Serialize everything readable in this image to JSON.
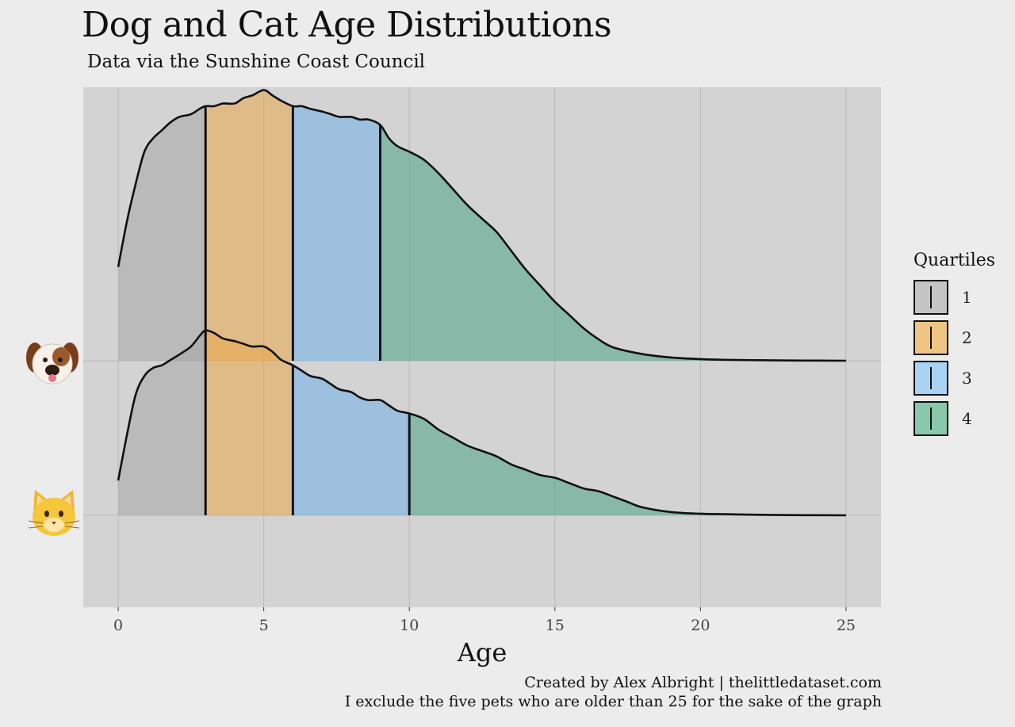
{
  "header": {
    "title": "Dog and Cat Age Distributions",
    "subtitle": "Data via the Sunshine Coast Council"
  },
  "footer": {
    "caption_line1": "Created by Alex Albright  |  thelittledataset.com",
    "caption_line2": "I exclude the five pets who are older than 25 for the sake of the graph"
  },
  "colors": {
    "background": "#ececec",
    "panel": "#d3d3d3",
    "grid": "#b9b9b9",
    "quartile_1": "#a6a6a6",
    "quartile_2": "#e8a848",
    "quartile_3": "#6fb0e6",
    "quartile_4": "#4aa383",
    "quartile_1_legend": "#c4c4c4",
    "quartile_2_legend": "#efc584",
    "quartile_3_legend": "#a9d2f3",
    "quartile_4_legend": "#8ac8ab",
    "outline": "#111111"
  },
  "legend": {
    "title": "Quartiles",
    "items": [
      {
        "label": "1",
        "color_key": "quartile_1_legend"
      },
      {
        "label": "2",
        "color_key": "quartile_2_legend"
      },
      {
        "label": "3",
        "color_key": "quartile_3_legend"
      },
      {
        "label": "4",
        "color_key": "quartile_4_legend"
      }
    ]
  },
  "chart_data": {
    "type": "area",
    "chart_subtype": "ridgeline-density",
    "title": "Dog and Cat Age Distributions",
    "subtitle": "Data via the Sunshine Coast Council",
    "xlabel": "Age",
    "ylabel": "",
    "xlim": [
      -1.2,
      26.2
    ],
    "x_ticks": [
      0,
      5,
      10,
      15,
      20,
      25
    ],
    "grid": true,
    "legend_position": "right",
    "legend_title": "Quartiles",
    "legend_entries": [
      "1",
      "2",
      "3",
      "4"
    ],
    "quartile_fill_opacity": 0.55,
    "series": [
      {
        "icon": "dog-face-icon",
        "quartile_breaks": [
          3,
          6,
          9
        ],
        "density": [
          [
            0,
            0.35
          ],
          [
            0.3,
            0.52
          ],
          [
            0.6,
            0.66
          ],
          [
            0.9,
            0.78
          ],
          [
            1.2,
            0.83
          ],
          [
            1.5,
            0.86
          ],
          [
            1.8,
            0.89
          ],
          [
            2.1,
            0.91
          ],
          [
            2.5,
            0.92
          ],
          [
            2.8,
            0.94
          ],
          [
            3.0,
            0.95
          ],
          [
            3.3,
            0.95
          ],
          [
            3.6,
            0.96
          ],
          [
            4.0,
            0.96
          ],
          [
            4.3,
            0.98
          ],
          [
            4.6,
            0.99
          ],
          [
            5.0,
            1.01
          ],
          [
            5.3,
            0.99
          ],
          [
            5.6,
            0.97
          ],
          [
            6.0,
            0.95
          ],
          [
            6.3,
            0.95
          ],
          [
            6.6,
            0.94
          ],
          [
            7.0,
            0.93
          ],
          [
            7.3,
            0.92
          ],
          [
            7.6,
            0.91
          ],
          [
            8.0,
            0.91
          ],
          [
            8.3,
            0.9
          ],
          [
            8.6,
            0.9
          ],
          [
            9.0,
            0.88
          ],
          [
            9.3,
            0.83
          ],
          [
            9.6,
            0.8
          ],
          [
            10.0,
            0.78
          ],
          [
            10.5,
            0.75
          ],
          [
            11.0,
            0.7
          ],
          [
            11.5,
            0.64
          ],
          [
            12.0,
            0.58
          ],
          [
            12.5,
            0.53
          ],
          [
            13.0,
            0.48
          ],
          [
            13.5,
            0.41
          ],
          [
            14.0,
            0.34
          ],
          [
            14.5,
            0.28
          ],
          [
            15.0,
            0.22
          ],
          [
            15.5,
            0.17
          ],
          [
            16.0,
            0.12
          ],
          [
            16.5,
            0.08
          ],
          [
            17.0,
            0.05
          ],
          [
            18.0,
            0.025
          ],
          [
            19.0,
            0.012
          ],
          [
            20.0,
            0.006
          ],
          [
            21.0,
            0.003
          ],
          [
            22.0,
            0.002
          ],
          [
            23.0,
            0.001
          ],
          [
            25.0,
            0.0
          ]
        ]
      },
      {
        "icon": "cat-face-icon",
        "quartile_breaks": [
          3,
          6,
          10
        ],
        "density": [
          [
            0,
            0.13
          ],
          [
            0.3,
            0.3
          ],
          [
            0.6,
            0.45
          ],
          [
            0.9,
            0.52
          ],
          [
            1.2,
            0.55
          ],
          [
            1.5,
            0.56
          ],
          [
            1.8,
            0.58
          ],
          [
            2.1,
            0.6
          ],
          [
            2.5,
            0.63
          ],
          [
            2.8,
            0.67
          ],
          [
            3.0,
            0.69
          ],
          [
            3.3,
            0.68
          ],
          [
            3.6,
            0.66
          ],
          [
            4.0,
            0.65
          ],
          [
            4.3,
            0.64
          ],
          [
            4.6,
            0.63
          ],
          [
            5.0,
            0.63
          ],
          [
            5.3,
            0.61
          ],
          [
            5.6,
            0.58
          ],
          [
            6.0,
            0.56
          ],
          [
            6.3,
            0.54
          ],
          [
            6.6,
            0.52
          ],
          [
            7.0,
            0.51
          ],
          [
            7.3,
            0.49
          ],
          [
            7.6,
            0.47
          ],
          [
            8.0,
            0.46
          ],
          [
            8.3,
            0.44
          ],
          [
            8.6,
            0.43
          ],
          [
            9.0,
            0.43
          ],
          [
            9.3,
            0.41
          ],
          [
            9.6,
            0.39
          ],
          [
            10.0,
            0.38
          ],
          [
            10.5,
            0.36
          ],
          [
            11.0,
            0.32
          ],
          [
            11.5,
            0.29
          ],
          [
            12.0,
            0.26
          ],
          [
            12.5,
            0.24
          ],
          [
            13.0,
            0.22
          ],
          [
            13.5,
            0.19
          ],
          [
            14.0,
            0.17
          ],
          [
            14.5,
            0.15
          ],
          [
            15.0,
            0.14
          ],
          [
            15.5,
            0.12
          ],
          [
            16.0,
            0.1
          ],
          [
            16.5,
            0.09
          ],
          [
            17.0,
            0.07
          ],
          [
            17.5,
            0.05
          ],
          [
            18.0,
            0.03
          ],
          [
            19.0,
            0.012
          ],
          [
            20.0,
            0.006
          ],
          [
            21.0,
            0.004
          ],
          [
            22.0,
            0.002
          ],
          [
            23.0,
            0.001
          ],
          [
            25.0,
            0.0
          ]
        ]
      }
    ]
  }
}
